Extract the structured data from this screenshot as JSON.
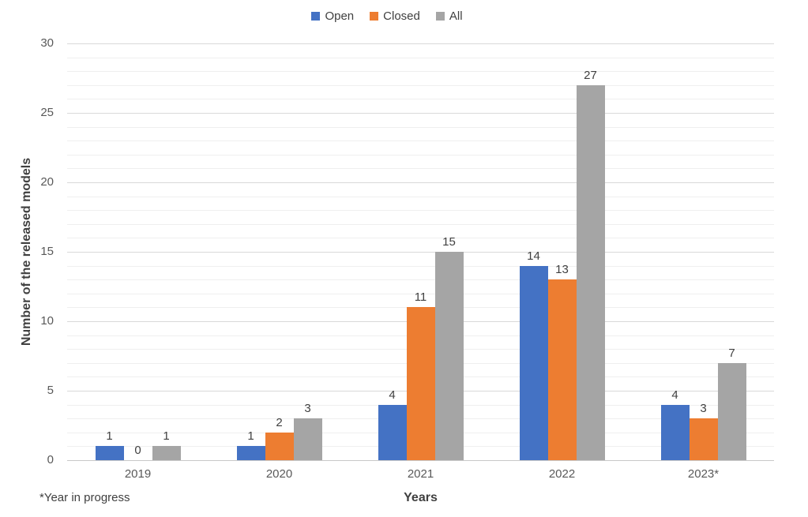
{
  "chart_data": {
    "type": "bar",
    "categories": [
      "2019",
      "2020",
      "2021",
      "2022",
      "2023*"
    ],
    "series": [
      {
        "name": "Open",
        "color": "#4472C4",
        "values": [
          1,
          1,
          4,
          14,
          4
        ]
      },
      {
        "name": "Closed",
        "color": "#ED7D31",
        "values": [
          0,
          2,
          11,
          13,
          3
        ]
      },
      {
        "name": "All",
        "color": "#A5A5A5",
        "values": [
          1,
          3,
          15,
          27,
          7
        ]
      }
    ],
    "title": "",
    "xlabel": "Years",
    "ylabel": "Number of the released models",
    "footnote": "*Year in progress",
    "ylim": [
      0,
      30
    ],
    "y_ticks": [
      0,
      5,
      10,
      15,
      20,
      25,
      30
    ],
    "y_major_interval": 5,
    "y_minor_interval": 1,
    "grid": true,
    "legend_position": "top",
    "data_labels": true,
    "colors": {
      "axis_line": "#c9c9c9",
      "major_gridline": "#d9d9d9",
      "minor_gridline": "#efefef",
      "tick_label": "#595959",
      "data_label": "#404040"
    }
  }
}
